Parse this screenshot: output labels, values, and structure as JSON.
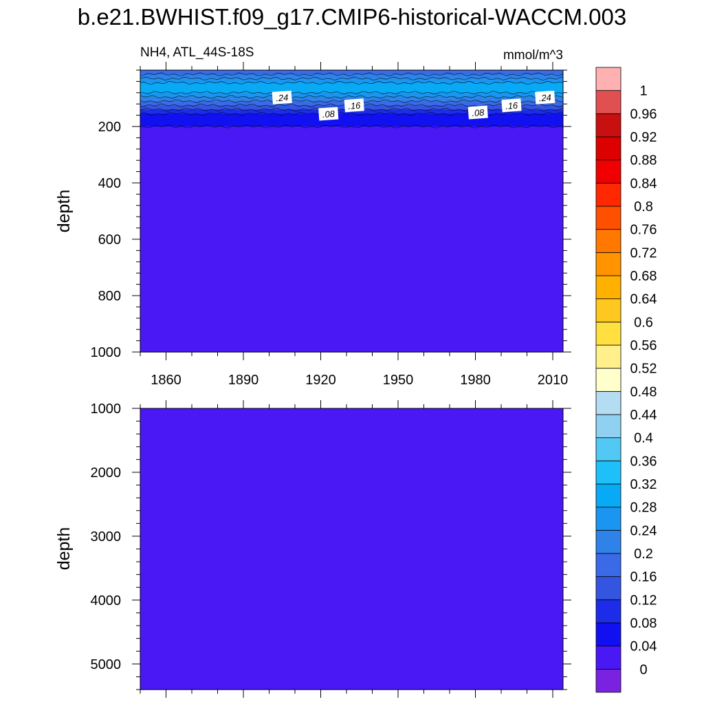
{
  "title": "b.e21.BWHIST.f09_g17.CMIP6-historical-WACCM.003",
  "chart_data": [
    {
      "type": "heatmap",
      "left_string": "NH4, ATL_44S-18S",
      "right_string": "mmol/m^3",
      "ylabel": "depth",
      "y_reversed": true,
      "xlim": [
        1850,
        2014
      ],
      "ylim": [
        0,
        1000
      ],
      "x_ticks": [
        "1860",
        "1890",
        "1920",
        "1950",
        "1980",
        "2010"
      ],
      "x_tick_values": [
        1860,
        1890,
        1920,
        1950,
        1980,
        2010
      ],
      "y_ticks": [
        "200",
        "400",
        "600",
        "800",
        "1000"
      ],
      "y_tick_values": [
        200,
        400,
        600,
        800,
        1000
      ],
      "depth_profile": [
        {
          "depth_top": 0,
          "depth_bottom": 15,
          "value": 0.18
        },
        {
          "depth_top": 15,
          "depth_bottom": 30,
          "value": 0.22
        },
        {
          "depth_top": 30,
          "depth_bottom": 45,
          "value": 0.26
        },
        {
          "depth_top": 45,
          "depth_bottom": 80,
          "value": 0.3
        },
        {
          "depth_top": 80,
          "depth_bottom": 95,
          "value": 0.26
        },
        {
          "depth_top": 95,
          "depth_bottom": 110,
          "value": 0.22
        },
        {
          "depth_top": 110,
          "depth_bottom": 125,
          "value": 0.18
        },
        {
          "depth_top": 125,
          "depth_bottom": 140,
          "value": 0.14
        },
        {
          "depth_top": 140,
          "depth_bottom": 155,
          "value": 0.1
        },
        {
          "depth_top": 155,
          "depth_bottom": 200,
          "value": 0.06
        },
        {
          "depth_top": 200,
          "depth_bottom": 1000,
          "value": 0.02
        }
      ],
      "contour_labels": [
        {
          "text": ".24",
          "x": 1905,
          "y": 97
        },
        {
          "text": ".16",
          "x": 1933,
          "y": 125
        },
        {
          "text": ".08",
          "x": 1923,
          "y": 155
        },
        {
          "text": ".08",
          "x": 1981,
          "y": 150
        },
        {
          "text": ".16",
          "x": 1994,
          "y": 125
        },
        {
          "text": ".24",
          "x": 2007,
          "y": 97
        }
      ]
    },
    {
      "type": "heatmap",
      "ylabel": "depth",
      "y_reversed": true,
      "xlim": [
        1850,
        2014
      ],
      "ylim": [
        1000,
        5400
      ],
      "y_ticks": [
        "1000",
        "2000",
        "3000",
        "4000",
        "5000"
      ],
      "y_tick_values": [
        1000,
        2000,
        3000,
        4000,
        5000
      ],
      "depth_profile": [
        {
          "depth_top": 1000,
          "depth_bottom": 5400,
          "value": 0.02
        }
      ]
    }
  ],
  "colorbar": {
    "levels": [
      "0",
      "0.04",
      "0.08",
      "0.12",
      "0.16",
      "0.2",
      "0.24",
      "0.28",
      "0.32",
      "0.36",
      "0.4",
      "0.44",
      "0.48",
      "0.52",
      "0.56",
      "0.6",
      "0.64",
      "0.68",
      "0.72",
      "0.76",
      "0.8",
      "0.84",
      "0.88",
      "0.92",
      "0.96",
      "1"
    ],
    "colors": [
      "#7b22e0",
      "#4a18f5",
      "#1010f0",
      "#1c2ce8",
      "#3355e0",
      "#3a6ae8",
      "#2f82e8",
      "#1a96f0",
      "#08aaf5",
      "#1ec0fa",
      "#52c8f5",
      "#90d0f0",
      "#b4dcf2",
      "#ffffcc",
      "#fff08c",
      "#ffe040",
      "#ffc820",
      "#ffb000",
      "#ff9400",
      "#ff7800",
      "#ff5000",
      "#ff2800",
      "#f00000",
      "#dc0000",
      "#c81010",
      "#e05050",
      "#ffb0b0"
    ]
  }
}
